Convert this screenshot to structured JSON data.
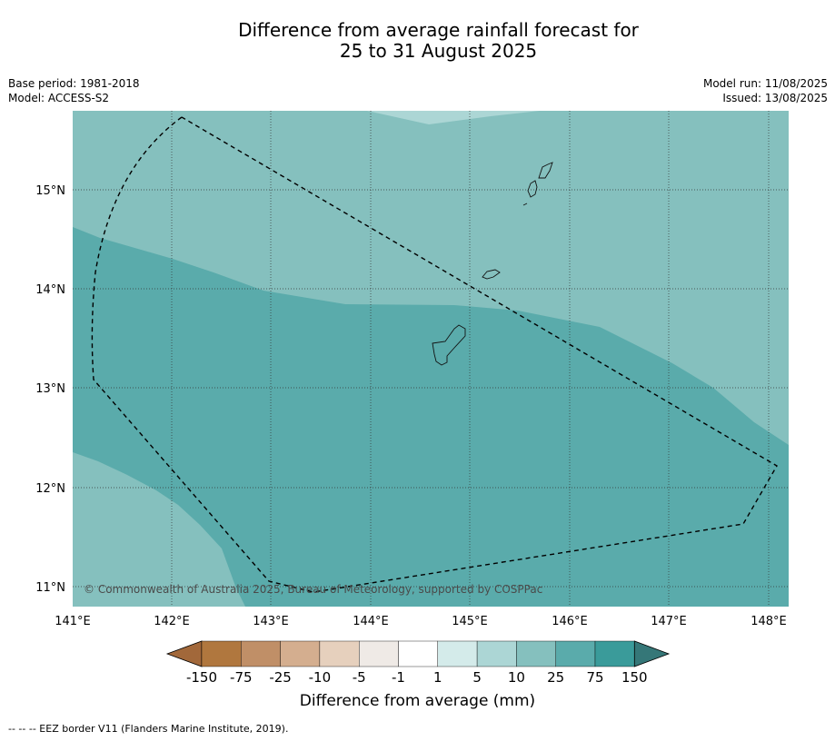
{
  "header": {
    "title_line1": "Difference from average rainfall forecast for",
    "title_line2": "25 to 31 August 2025",
    "base_period": "Base period: 1981-2018",
    "model": "Model: ACCESS-S2",
    "model_run": "Model run: 11/08/2025",
    "issued": "Issued: 13/08/2025"
  },
  "map": {
    "lon_ticks": [
      "141°E",
      "142°E",
      "143°E",
      "144°E",
      "145°E",
      "146°E",
      "147°E",
      "148°E"
    ],
    "lat_ticks": [
      "15°N",
      "14°N",
      "13°N",
      "12°N",
      "11°N"
    ],
    "copyright": "© Commonwealth of Australia 2025, Bureau of Meteorology, supported by COSPPac",
    "colors": {
      "light_teal": "#85c0be",
      "medium_teal": "#5aabab",
      "pale_teal": "#acd6d5"
    }
  },
  "colorbar": {
    "ticks": [
      "-150",
      "-75",
      "-25",
      "-10",
      "-5",
      "-1",
      "1",
      "5",
      "10",
      "25",
      "75",
      "150"
    ],
    "colors": [
      "#a2683a",
      "#b0773e",
      "#c08f67",
      "#d4ae8f",
      "#e6d0bd",
      "#efeae6",
      "#ffffff",
      "#d4ebea",
      "#acd6d5",
      "#85c0be",
      "#5aabab",
      "#3a9b9a",
      "#357778"
    ],
    "label": "Difference from average (mm)"
  },
  "footnote": "--  --  -- EEZ border V11 (Flanders Marine Institute, 2019)."
}
